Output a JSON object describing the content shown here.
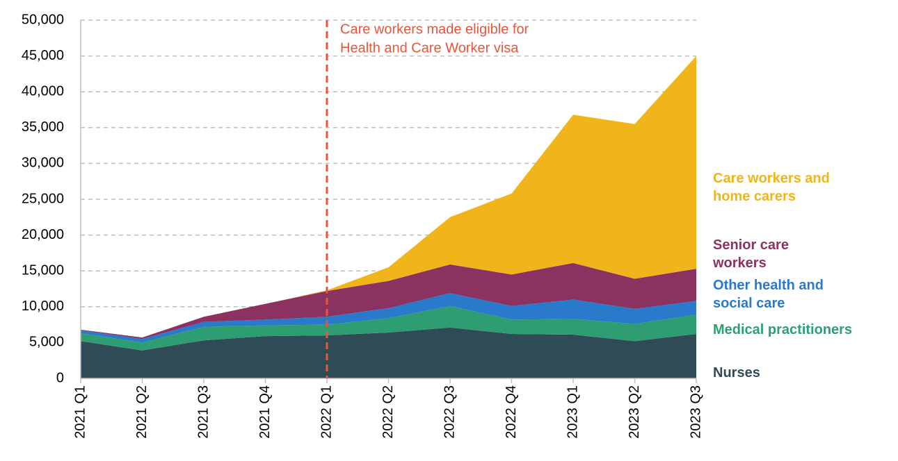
{
  "chart_data": {
    "type": "stacked-area",
    "categories": [
      "2021 Q1",
      "2021 Q2",
      "2021 Q3",
      "2021 Q4",
      "2022 Q1",
      "2022 Q2",
      "2022 Q3",
      "2022 Q4",
      "2023 Q1",
      "2023 Q2",
      "2023 Q3"
    ],
    "series": [
      {
        "name": "Nurses",
        "color": "#2f4b55",
        "values": [
          5200,
          3900,
          5300,
          5900,
          6000,
          6400,
          7100,
          6200,
          6100,
          5200,
          6200
        ]
      },
      {
        "name": "Medical practitioners",
        "color": "#2e9e72",
        "values": [
          1100,
          1100,
          1900,
          1500,
          1500,
          2000,
          3000,
          2000,
          2200,
          2400,
          2700
        ]
      },
      {
        "name": "Other health and social care",
        "color": "#2a7acb",
        "values": [
          400,
          500,
          700,
          800,
          1100,
          1400,
          1800,
          1900,
          2700,
          2100,
          1900
        ]
      },
      {
        "name": "Senior care workers",
        "color": "#8c3260",
        "values": [
          100,
          200,
          700,
          2200,
          3600,
          3800,
          4000,
          4400,
          5100,
          4200,
          4500
        ]
      },
      {
        "name": "Care workers and home carers",
        "color": "#f0b51b",
        "values": [
          0,
          0,
          0,
          0,
          100,
          1900,
          6600,
          11300,
          20700,
          21600,
          29700
        ]
      }
    ],
    "ylim": [
      0,
      50000
    ],
    "yticks": [
      0,
      {
        "value": 5000,
        "label": "5,000"
      },
      {
        "value": 10000,
        "label": "10,000"
      },
      {
        "value": 15000,
        "label": "15,000"
      },
      {
        "value": 20000,
        "label": "20,000"
      },
      {
        "value": 25000,
        "label": "25,000"
      },
      {
        "value": 30000,
        "label": "30,000"
      },
      {
        "value": 35000,
        "label": "35,000"
      },
      {
        "value": 40000,
        "label": "40,000"
      },
      {
        "value": 45000,
        "label": "45,000"
      },
      {
        "value": 50000,
        "label": "50,000"
      }
    ],
    "grid": true,
    "annotation": {
      "x": "2022 Q1",
      "color": "#e8553a",
      "lines": [
        "Care workers made eligible for",
        "Health and Care Worker visa"
      ]
    }
  }
}
